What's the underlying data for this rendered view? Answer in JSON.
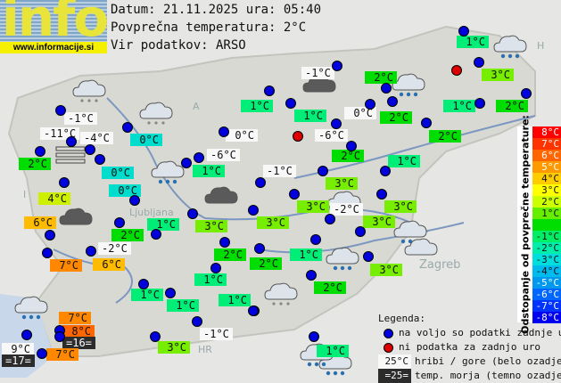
{
  "header": {
    "logo_text": "info",
    "logo_url": "www.informacije.si",
    "date_line": "Datum: 21.11.2025 ura: 05:40",
    "avg_line": "Povprečna temperatura: 2°C",
    "source_line": "Vir podatkov: ARSO"
  },
  "places": [
    "Ljubljana",
    "Zagreb",
    "A",
    "I",
    "H",
    "HR"
  ],
  "stations": [
    {
      "t": "1°C",
      "kind": "valley",
      "color": "#00ee77"
    },
    {
      "t": "3°C",
      "kind": "valley",
      "color": "#77ee00"
    },
    {
      "t": "2°C",
      "kind": "valley",
      "color": "#00dd00"
    },
    {
      "t": "1°C",
      "kind": "valley",
      "color": "#00ee77"
    },
    {
      "t": "-1°C",
      "kind": "hill",
      "color": "#f8f8f8"
    },
    {
      "t": "1°C",
      "kind": "valley",
      "color": "#00ee77"
    },
    {
      "t": "1°C",
      "kind": "valley",
      "color": "#00ee77"
    },
    {
      "t": "2°C",
      "kind": "valley",
      "color": "#00dd00"
    },
    {
      "t": "0°C",
      "kind": "hill",
      "color": "#f8f8f8"
    },
    {
      "t": "2°C",
      "kind": "valley",
      "color": "#00dd00"
    },
    {
      "t": "-6°C",
      "kind": "hill",
      "color": "#f8f8f8"
    },
    {
      "t": "2°C",
      "kind": "valley",
      "color": "#00dd00"
    },
    {
      "t": "2°C",
      "kind": "valley",
      "color": "#00dd00"
    },
    {
      "t": "1°C",
      "kind": "valley",
      "color": "#00ee77"
    },
    {
      "t": "-1°C",
      "kind": "hill",
      "color": "#f8f8f8"
    },
    {
      "t": "-1°C",
      "kind": "hill",
      "color": "#f8f8f8"
    },
    {
      "t": "-11°C",
      "kind": "hill",
      "color": "#f8f8f8"
    },
    {
      "t": "-4°C",
      "kind": "hill",
      "color": "#f8f8f8"
    },
    {
      "t": "2°C",
      "kind": "valley",
      "color": "#00dd00"
    },
    {
      "t": "0°C",
      "kind": "valley",
      "color": "#00ddcc"
    },
    {
      "t": "0°C",
      "kind": "valley",
      "color": "#00ddcc"
    },
    {
      "t": "4°C",
      "kind": "valley",
      "color": "#ccf000"
    },
    {
      "t": "0°C",
      "kind": "valley",
      "color": "#00ddcc"
    },
    {
      "t": "0°C",
      "kind": "hill",
      "color": "#f8f8f8"
    },
    {
      "t": "-6°C",
      "kind": "hill",
      "color": "#f8f8f8"
    },
    {
      "t": "1°C",
      "kind": "valley",
      "color": "#00ee77"
    },
    {
      "t": "3°C",
      "kind": "valley",
      "color": "#77ee00"
    },
    {
      "t": "3°C",
      "kind": "valley",
      "color": "#77ee00"
    },
    {
      "t": "3°C",
      "kind": "valley",
      "color": "#77ee00"
    },
    {
      "t": "-2°C",
      "kind": "hill",
      "color": "#f8f8f8"
    },
    {
      "t": "3°C",
      "kind": "valley",
      "color": "#77ee00"
    },
    {
      "t": "3°C",
      "kind": "valley",
      "color": "#77ee00"
    },
    {
      "t": "1°C",
      "kind": "valley",
      "color": "#00ee77"
    },
    {
      "t": "2°C",
      "kind": "valley",
      "color": "#00dd00"
    },
    {
      "t": "3°C",
      "kind": "valley",
      "color": "#77ee00"
    },
    {
      "t": "2°C",
      "kind": "valley",
      "color": "#00dd00"
    },
    {
      "t": "1°C",
      "kind": "valley",
      "color": "#00ee77"
    },
    {
      "t": "6°C",
      "kind": "valley",
      "color": "#ffbb00"
    },
    {
      "t": "2°C",
      "kind": "valley",
      "color": "#00dd00"
    },
    {
      "t": "1°C",
      "kind": "valley",
      "color": "#00ee77"
    },
    {
      "t": "3°C",
      "kind": "valley",
      "color": "#77ee00"
    },
    {
      "t": "7°C",
      "kind": "valley",
      "color": "#ff8800"
    },
    {
      "t": "-2°C",
      "kind": "hill",
      "color": "#f8f8f8"
    },
    {
      "t": "6°C",
      "kind": "valley",
      "color": "#ffbb00"
    },
    {
      "t": "2°C",
      "kind": "valley",
      "color": "#00dd00"
    },
    {
      "t": "1°C",
      "kind": "valley",
      "color": "#00ee77"
    },
    {
      "t": "1°C",
      "kind": "valley",
      "color": "#00ee77"
    },
    {
      "t": "1°C",
      "kind": "valley",
      "color": "#00ee77"
    },
    {
      "t": "1°C",
      "kind": "valley",
      "color": "#00ee77"
    },
    {
      "t": "-1°C",
      "kind": "hill",
      "color": "#f8f8f8"
    },
    {
      "t": "3°C",
      "kind": "valley",
      "color": "#77ee00"
    },
    {
      "t": "9°C",
      "kind": "hill",
      "color": "#f8f8f8"
    },
    {
      "t": "=17=",
      "kind": "sea",
      "color": "#2c2c2c"
    },
    {
      "t": "7°C",
      "kind": "valley",
      "color": "#ff8800"
    },
    {
      "t": "8°C",
      "kind": "valley",
      "color": "#ff6600"
    },
    {
      "t": "=16=",
      "kind": "sea",
      "color": "#2c2c2c"
    },
    {
      "t": "7°C",
      "kind": "valley",
      "color": "#ff8800"
    }
  ],
  "station_dots": {
    "ok_color": "#0000dd",
    "nodata_color": "#dd0000"
  },
  "scale": {
    "title": "Odstopanje od povprečne temperature:",
    "cells": [
      {
        "label": "8°C",
        "color": "#ff0000"
      },
      {
        "label": "7°C",
        "color": "#ff3300"
      },
      {
        "label": "6°C",
        "color": "#ff6600"
      },
      {
        "label": "5°C",
        "color": "#ff9900"
      },
      {
        "label": "4°C",
        "color": "#ffcc00"
      },
      {
        "label": "3°C",
        "color": "#ffff00"
      },
      {
        "label": "2°C",
        "color": "#ccff00"
      },
      {
        "label": "1°C",
        "color": "#66ee00"
      },
      {
        "label": "",
        "color": "#00dd00"
      },
      {
        "label": "-1°C",
        "color": "#00ee66"
      },
      {
        "label": "-2°C",
        "color": "#00eeaa"
      },
      {
        "label": "-3°C",
        "color": "#00dddd"
      },
      {
        "label": "-4°C",
        "color": "#00bbee"
      },
      {
        "label": "-5°C",
        "color": "#0099ee"
      },
      {
        "label": "-6°C",
        "color": "#0066ff"
      },
      {
        "label": "-7°C",
        "color": "#0033ff"
      },
      {
        "label": "-8°C",
        "color": "#0000ee"
      }
    ]
  },
  "legend": {
    "title": "Legenda:",
    "ok": "na voljo so podatki zadnje ure",
    "nodata": "ni podatka za zadnjo uro",
    "hill_sample": "25°C",
    "hill_text": "hribi / gore (belo ozadje)",
    "sea_sample": "=25=",
    "sea_text": "temp. morja (temno ozadje)"
  }
}
